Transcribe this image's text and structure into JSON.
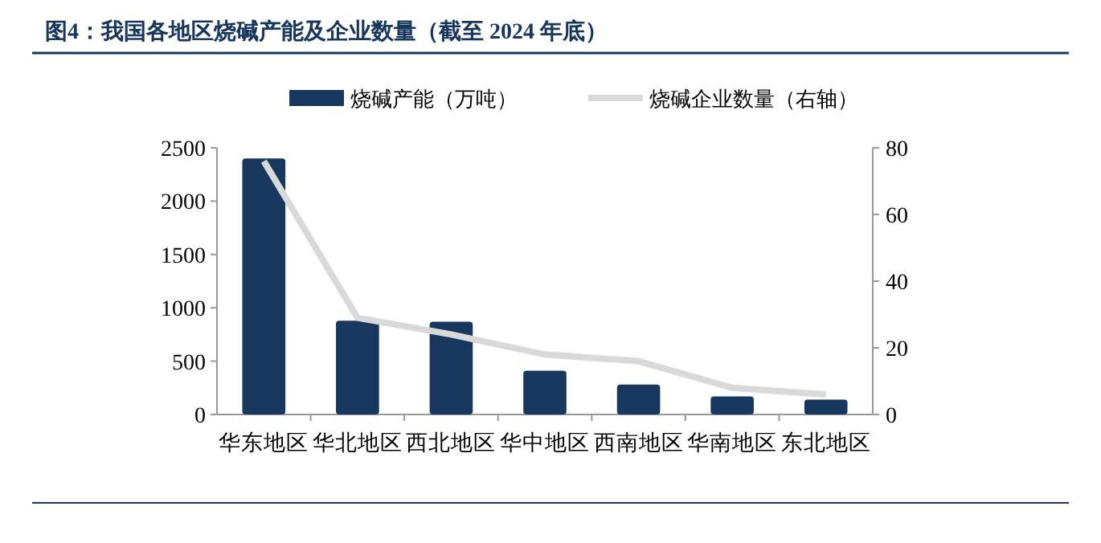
{
  "chart_data": {
    "type": "bar",
    "title": "图4：我国各地区烧碱产能及企业数量（截至 2024 年底）",
    "categories": [
      "华东地区",
      "华北地区",
      "西北地区",
      "华中地区",
      "西南地区",
      "华南地区",
      "东北地区"
    ],
    "series": [
      {
        "name": "烧碱产能（万吨）",
        "color": "#17375e",
        "values": [
          2400,
          880,
          870,
          410,
          280,
          170,
          140
        ]
      },
      {
        "name": "烧碱企业数量（右轴）",
        "type": "line",
        "axis": "y2",
        "color": "#d9d9d9",
        "values": [
          76,
          29,
          24,
          18,
          16,
          8,
          6
        ]
      }
    ],
    "ylim": [
      0,
      2500
    ],
    "yticks": [
      0,
      500,
      1000,
      1500,
      2000,
      2500
    ],
    "y2lim": [
      0,
      80
    ],
    "y2ticks": [
      0,
      20,
      40,
      60,
      80
    ],
    "legend": "top",
    "grid": false
  }
}
